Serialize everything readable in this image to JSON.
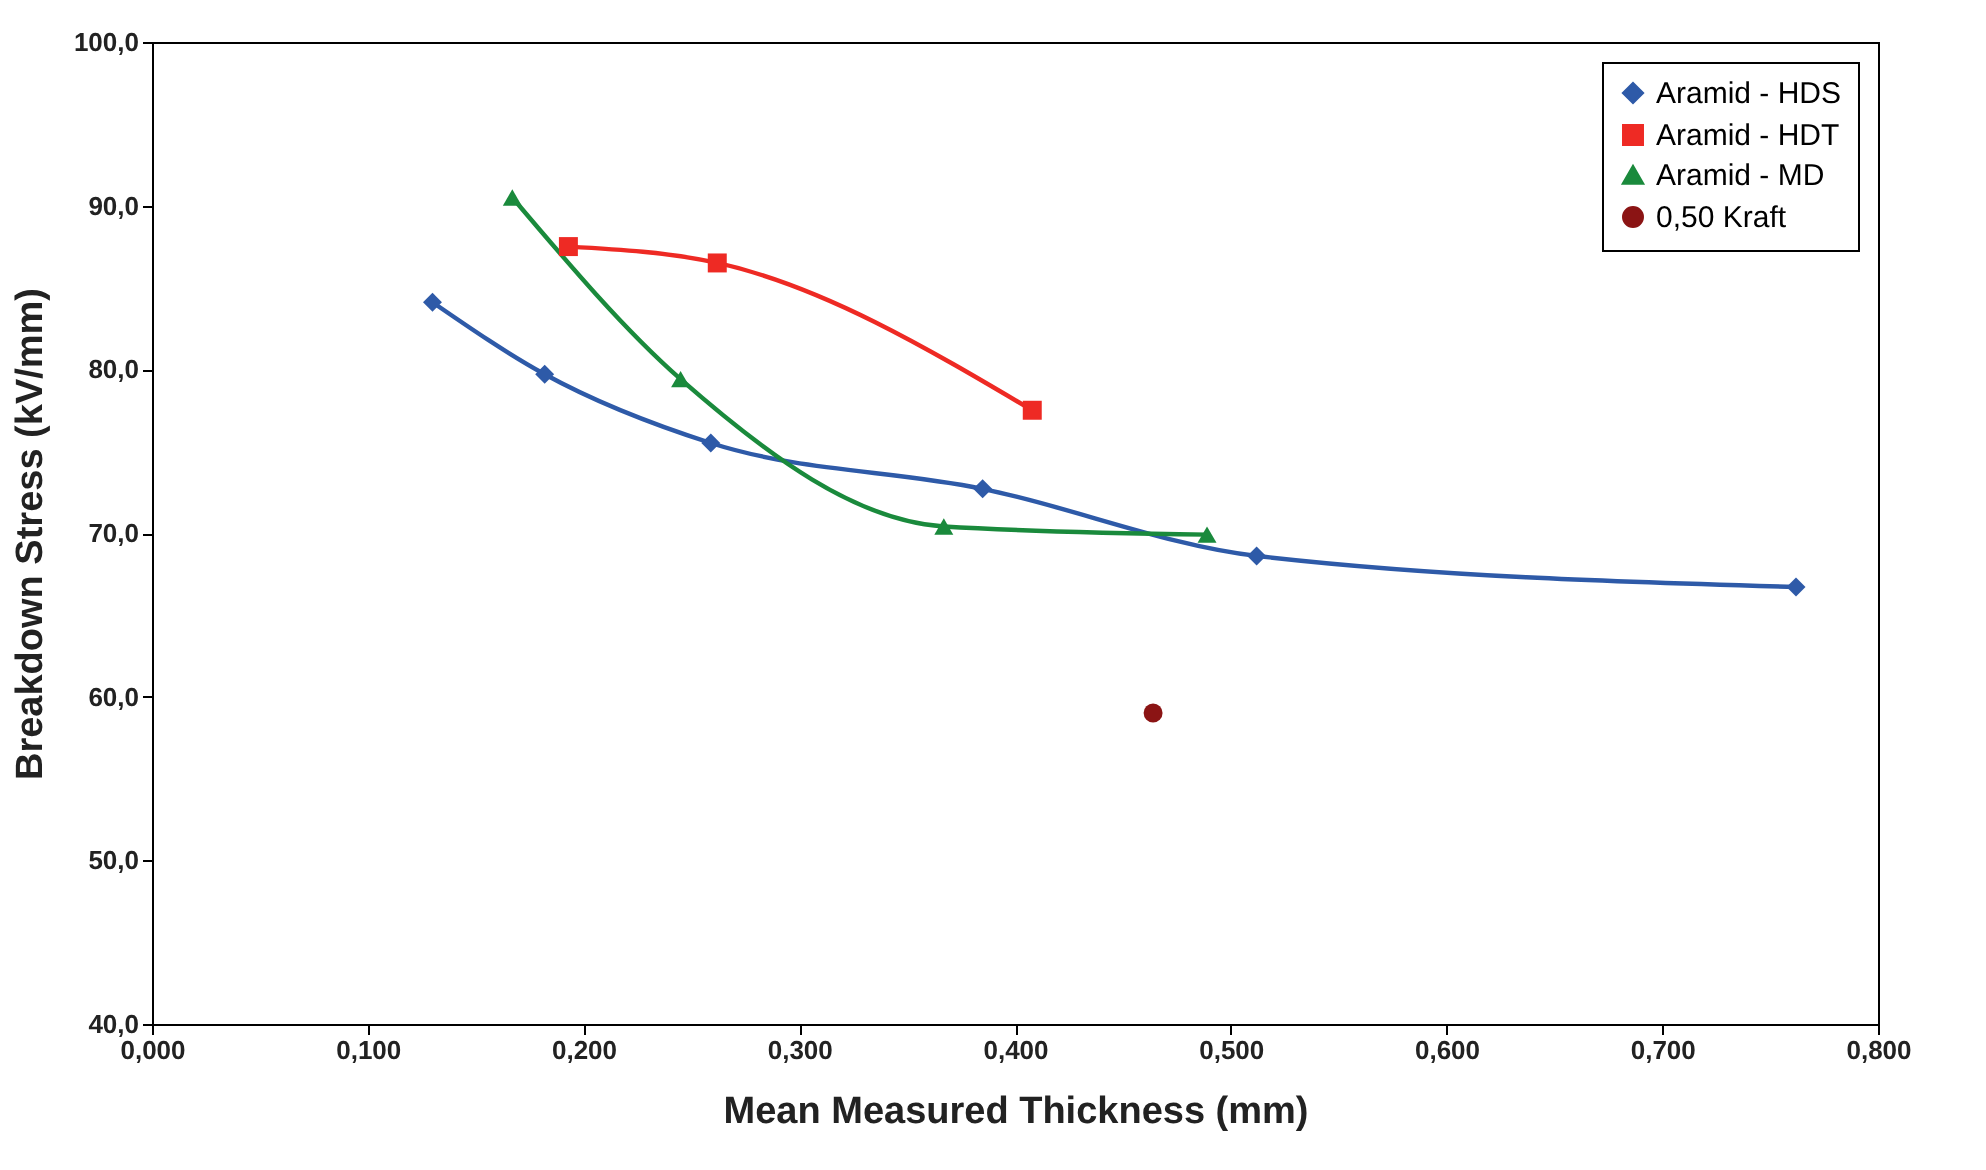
{
  "chart_data": {
    "type": "line",
    "xlabel": "Mean Measured Thickness (mm)",
    "ylabel": "Breakdown Stress (kV/mm)",
    "xlim": [
      0,
      0.8
    ],
    "ylim": [
      40,
      100
    ],
    "xticks": [
      {
        "value": 0,
        "label": "0,000"
      },
      {
        "value": 0.1,
        "label": "0,100"
      },
      {
        "value": 0.2,
        "label": "0,200"
      },
      {
        "value": 0.3,
        "label": "0,300"
      },
      {
        "value": 0.4,
        "label": "0,400"
      },
      {
        "value": 0.5,
        "label": "0,500"
      },
      {
        "value": 0.6,
        "label": "0,600"
      },
      {
        "value": 0.7,
        "label": "0,700"
      },
      {
        "value": 0.8,
        "label": "0,800"
      }
    ],
    "yticks": [
      {
        "value": 40,
        "label": "40,0"
      },
      {
        "value": 50,
        "label": "50,0"
      },
      {
        "value": 60,
        "label": "60,0"
      },
      {
        "value": 70,
        "label": "70,0"
      },
      {
        "value": 80,
        "label": "80,0"
      },
      {
        "value": 90,
        "label": "90,0"
      },
      {
        "value": 100,
        "label": "100,0"
      }
    ],
    "grid": false,
    "legend": "top right",
    "series": [
      {
        "name": "Aramid - HDS",
        "marker": "diamond",
        "color": "#2e5aa8",
        "x": [
          0.13,
          0.182,
          0.259,
          0.385,
          0.512,
          0.762
        ],
        "values": [
          84.1,
          79.7,
          75.5,
          72.7,
          68.6,
          66.7
        ]
      },
      {
        "name": "Aramid - HDT",
        "marker": "square",
        "color": "#ee2a24",
        "x": [
          0.193,
          0.262,
          0.408
        ],
        "values": [
          87.5,
          86.5,
          77.5
        ]
      },
      {
        "name": "Aramid - MD",
        "marker": "triangle",
        "color": "#1a8a3c",
        "x": [
          0.167,
          0.245,
          0.367,
          0.489
        ],
        "values": [
          90.5,
          79.4,
          70.4,
          69.9
        ]
      },
      {
        "name": "0,50 Kraft",
        "type": "scatter",
        "marker": "circle",
        "color": "#8b1414",
        "x": [
          0.464
        ],
        "values": [
          59.0
        ]
      }
    ]
  }
}
